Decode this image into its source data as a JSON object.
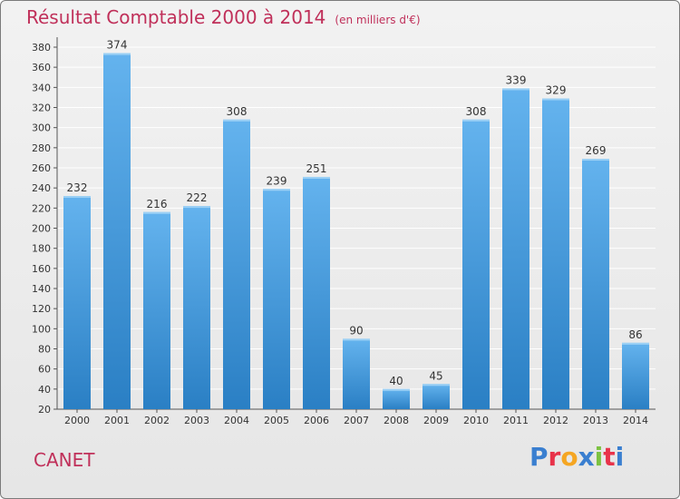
{
  "header": {
    "title": "Résultat Comptable 2000 à 2014",
    "subtitle": "(en milliers d'€)"
  },
  "footer": {
    "place": "CANET",
    "logo_text": "Proxiti",
    "logo_colors": [
      "#3a7fd0",
      "#e8334a",
      "#f5a623",
      "#3a7fd0",
      "#7cc242",
      "#e8334a",
      "#3a7fd0"
    ]
  },
  "colors": {
    "bar_top": "#64b3ee",
    "bar_bottom": "#2a7fc4",
    "label": "#333333",
    "grid": "#ffffff"
  },
  "chart_data": {
    "type": "bar",
    "categories": [
      "2000",
      "2001",
      "2002",
      "2003",
      "2004",
      "2005",
      "2006",
      "2007",
      "2008",
      "2009",
      "2010",
      "2011",
      "2012",
      "2013",
      "2014"
    ],
    "values": [
      232,
      374,
      216,
      222,
      308,
      239,
      251,
      90,
      40,
      45,
      308,
      339,
      329,
      269,
      86
    ],
    "ylim": [
      20,
      380
    ],
    "yticks": [
      20,
      40,
      60,
      80,
      100,
      120,
      140,
      160,
      180,
      200,
      220,
      240,
      260,
      280,
      300,
      320,
      340,
      360,
      380
    ],
    "grid": true
  }
}
